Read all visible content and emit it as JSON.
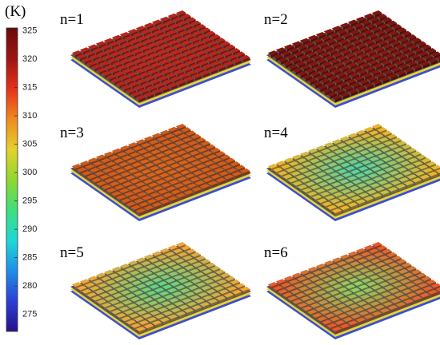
{
  "colorbar": {
    "unit": "(K)",
    "lim": [
      272,
      325.5
    ],
    "ticks": [
      275,
      280,
      285,
      290,
      295,
      300,
      305,
      310,
      315,
      320,
      325
    ],
    "colors": [
      "#2a0f8c",
      "#2b3fd6",
      "#1e8ee8",
      "#1ed8d8",
      "#3ee07a",
      "#8fd82e",
      "#e6d12a",
      "#f08a1e",
      "#e5301a",
      "#9e1414",
      "#6b0a0a"
    ]
  },
  "panels": [
    {
      "label": "n=1",
      "center_color": "#c4281e",
      "edge_color": "#b2251c"
    },
    {
      "label": "n=2",
      "center_color": "#8b1a12",
      "edge_color": "#7a1510"
    },
    {
      "label": "n=3",
      "center_color": "#d9671f",
      "edge_color": "#cf5a1c"
    },
    {
      "label": "n=4",
      "center_color": "#4fd6a5",
      "edge_color": "#f0b42a"
    },
    {
      "label": "n=5",
      "center_color": "#5ed68a",
      "edge_color": "#f2a53a"
    },
    {
      "label": "n=6",
      "center_color": "#8cd96a",
      "edge_color": "#e85a2a"
    }
  ]
}
